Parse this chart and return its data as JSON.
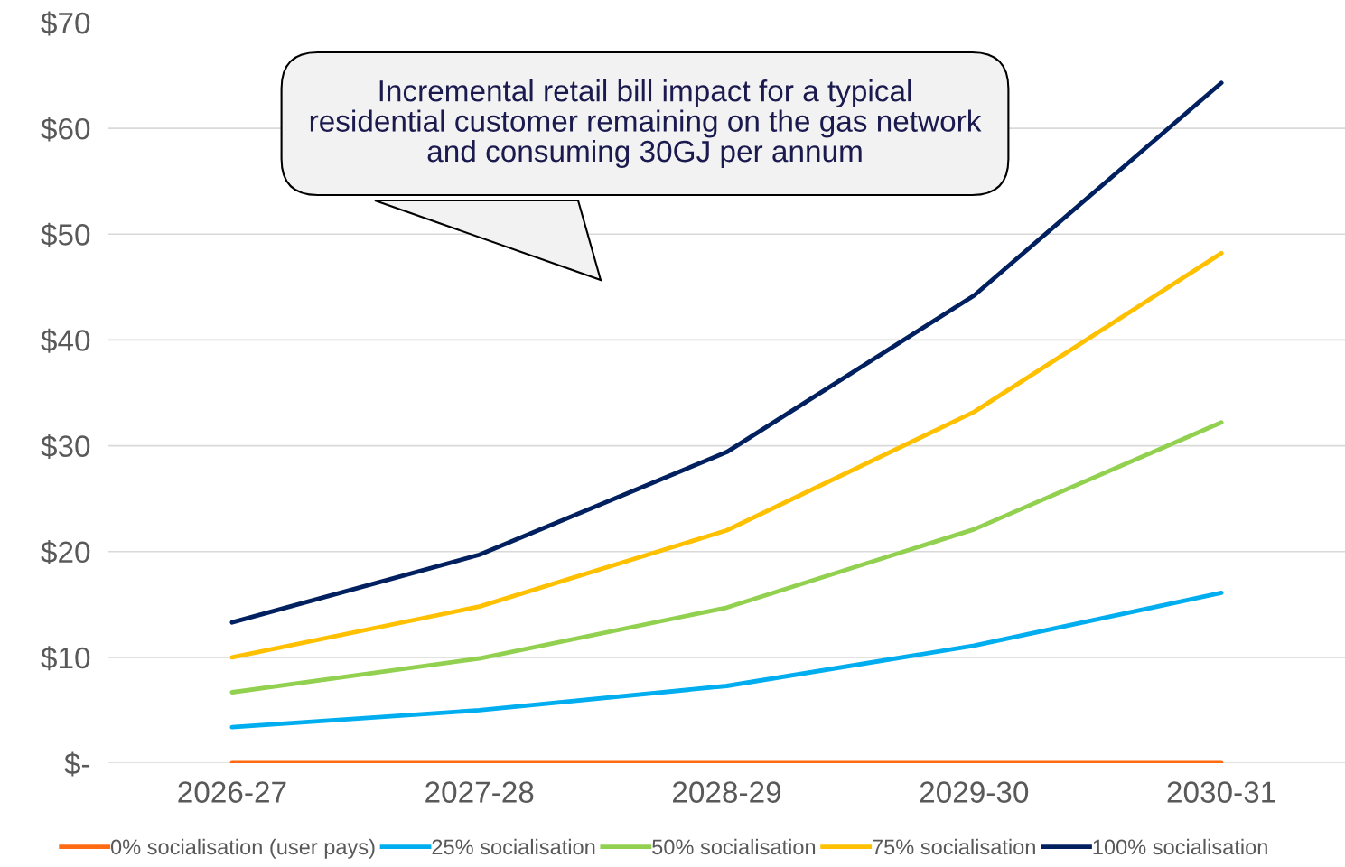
{
  "chart_data": {
    "type": "line",
    "categories": [
      "2026-27",
      "2027-28",
      "2028-29",
      "2029-30",
      "2030-31"
    ],
    "series": [
      {
        "name": "0% socialisation (user pays)",
        "color": "#ff6a13",
        "values": [
          0,
          0,
          0,
          0,
          0
        ]
      },
      {
        "name": "25% socialisation",
        "color": "#00aeef",
        "values": [
          3.4,
          5.0,
          7.3,
          11.1,
          16.1
        ]
      },
      {
        "name": "50% socialisation",
        "color": "#92d050",
        "values": [
          6.7,
          9.9,
          14.7,
          22.1,
          32.2
        ]
      },
      {
        "name": "75% socialisation",
        "color": "#ffc000",
        "values": [
          10.0,
          14.8,
          22.0,
          33.2,
          48.2
        ]
      },
      {
        "name": "100% socialisation",
        "color": "#002060",
        "values": [
          13.3,
          19.7,
          29.4,
          44.2,
          64.3
        ]
      }
    ],
    "ylim": [
      0,
      70
    ],
    "yticks": [
      {
        "value": 0,
        "label": "$-"
      },
      {
        "value": 10,
        "label": "$10"
      },
      {
        "value": 20,
        "label": "$20"
      },
      {
        "value": 30,
        "label": "$30"
      },
      {
        "value": 40,
        "label": "$40"
      },
      {
        "value": 50,
        "label": "$50"
      },
      {
        "value": 60,
        "label": "$60"
      },
      {
        "value": 70,
        "label": "$70"
      }
    ],
    "annotations": [
      "Incremental retail bill impact for a typical residential customer remaining on the gas network and consuming 30GJ per annum"
    ],
    "grid": "y",
    "legend": "bottom",
    "marker": "none",
    "line_style": "solid"
  }
}
